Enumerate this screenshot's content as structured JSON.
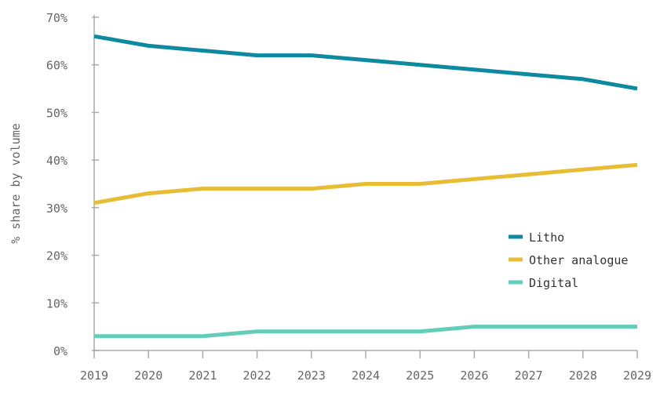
{
  "chart_data": {
    "type": "line",
    "title": "",
    "xlabel": "",
    "ylabel": "% share by volume",
    "x": [
      "2019",
      "2020",
      "2021",
      "2022",
      "2023",
      "2024",
      "2025",
      "2026",
      "2027",
      "2028",
      "2029"
    ],
    "yticks": [
      "0%",
      "10%",
      "20%",
      "30%",
      "40%",
      "50%",
      "60%",
      "70%"
    ],
    "ylim": [
      0,
      70
    ],
    "grid": false,
    "legend_position": "right",
    "series": [
      {
        "name": "Litho",
        "color": "#0e8aa0",
        "values": [
          66,
          64,
          63,
          62,
          62,
          61,
          60,
          59,
          58,
          57,
          55
        ]
      },
      {
        "name": "Other analogue",
        "color": "#e8bd35",
        "values": [
          31,
          33,
          34,
          34,
          34,
          35,
          35,
          36,
          37,
          38,
          39
        ]
      },
      {
        "name": "Digital",
        "color": "#63cdb9",
        "values": [
          3,
          3,
          3,
          4,
          4,
          4,
          4,
          5,
          5,
          5,
          5
        ]
      }
    ]
  }
}
